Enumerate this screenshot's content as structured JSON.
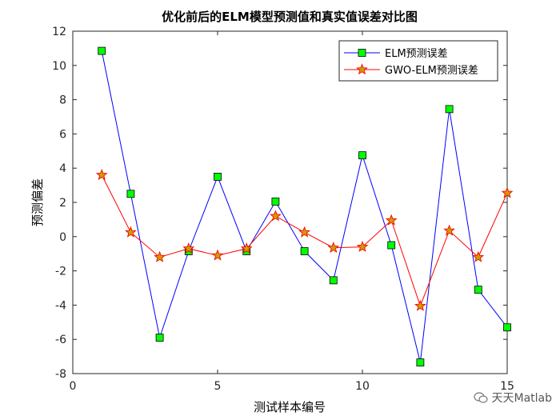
{
  "chart_data": {
    "type": "line",
    "title": "优化前后的ELM模型预测值和真实值误差对比图",
    "xlabel": "测试样本编号",
    "ylabel": "预测偏差",
    "xlim": [
      0,
      15
    ],
    "ylim": [
      -8,
      12
    ],
    "xticks": [
      0,
      5,
      10,
      15
    ],
    "yticks": [
      -8,
      -6,
      -4,
      -2,
      0,
      2,
      4,
      6,
      8,
      10,
      12
    ],
    "legend_position": "top-right",
    "grid": false,
    "x": [
      1,
      2,
      3,
      4,
      5,
      6,
      7,
      8,
      9,
      10,
      11,
      12,
      13,
      14,
      15
    ],
    "series": [
      {
        "name": "ELM预测误差",
        "color": "#0000ff",
        "marker": "square",
        "marker_fill": "#00ff00",
        "values": [
          10.85,
          2.5,
          -5.9,
          -0.85,
          3.5,
          -0.85,
          2.05,
          -0.85,
          -2.55,
          4.75,
          -0.5,
          -7.35,
          7.45,
          -3.1,
          -5.3
        ]
      },
      {
        "name": "GWO-ELM预测误差",
        "color": "#ff0000",
        "marker": "star",
        "marker_fill": "#c8a000",
        "values": [
          3.6,
          0.25,
          -1.2,
          -0.7,
          -1.1,
          -0.7,
          1.2,
          0.25,
          -0.65,
          -0.6,
          0.95,
          -4.05,
          0.35,
          -1.2,
          2.55
        ]
      }
    ]
  },
  "watermark": {
    "text": "天天Matlab",
    "icon": "wechat-icon"
  }
}
